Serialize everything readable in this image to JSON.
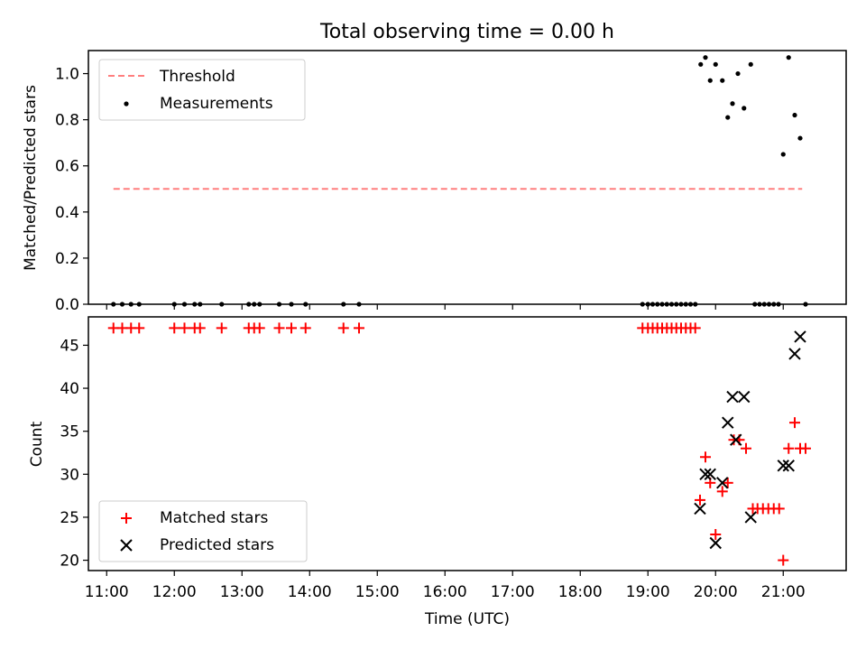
{
  "title": "Total observing time = 0.00 h",
  "chart_data": [
    {
      "type": "scatter",
      "panel": "top",
      "ylabel": "Matched/Predicted stars",
      "ylim": [
        0,
        1.1
      ],
      "yticks": [
        0.0,
        0.2,
        0.4,
        0.6,
        0.8,
        1.0
      ],
      "ytick_labels": [
        "0.0",
        "0.2",
        "0.4",
        "0.6",
        "0.8",
        "1.0"
      ],
      "legend_position": "top-left",
      "threshold": {
        "name": "Threshold",
        "value": 0.5,
        "x_start": 11.1,
        "x_end": 21.28,
        "color": "#ff7f7f",
        "style": "dashed"
      },
      "series": [
        {
          "name": "Measurements",
          "color": "#000000",
          "marker": "dot",
          "points": [
            [
              11.1,
              0.0
            ],
            [
              11.23,
              0.0
            ],
            [
              11.36,
              0.0
            ],
            [
              11.48,
              0.0
            ],
            [
              12.0,
              0.0
            ],
            [
              12.15,
              0.0
            ],
            [
              12.3,
              0.0
            ],
            [
              12.38,
              0.0
            ],
            [
              12.7,
              0.0
            ],
            [
              13.1,
              0.0
            ],
            [
              13.18,
              0.0
            ],
            [
              13.26,
              0.0
            ],
            [
              13.55,
              0.0
            ],
            [
              13.73,
              0.0
            ],
            [
              13.94,
              0.0
            ],
            [
              14.5,
              0.0
            ],
            [
              14.73,
              0.0
            ],
            [
              18.92,
              0.0
            ],
            [
              19.0,
              0.0
            ],
            [
              19.07,
              0.0
            ],
            [
              19.14,
              0.0
            ],
            [
              19.21,
              0.0
            ],
            [
              19.28,
              0.0
            ],
            [
              19.35,
              0.0
            ],
            [
              19.42,
              0.0
            ],
            [
              19.49,
              0.0
            ],
            [
              19.56,
              0.0
            ],
            [
              19.63,
              0.0
            ],
            [
              19.7,
              0.0
            ],
            [
              20.58,
              0.0
            ],
            [
              20.65,
              0.0
            ],
            [
              20.72,
              0.0
            ],
            [
              20.79,
              0.0
            ],
            [
              20.86,
              0.0
            ],
            [
              20.93,
              0.0
            ],
            [
              21.33,
              0.0
            ],
            [
              19.78,
              1.04
            ],
            [
              19.85,
              1.07
            ],
            [
              19.92,
              0.97
            ],
            [
              20.0,
              1.04
            ],
            [
              20.1,
              0.97
            ],
            [
              20.18,
              0.81
            ],
            [
              20.25,
              0.87
            ],
            [
              20.33,
              1.0
            ],
            [
              20.42,
              0.85
            ],
            [
              20.52,
              1.04
            ],
            [
              21.0,
              0.65
            ],
            [
              21.08,
              1.07
            ],
            [
              21.17,
              0.82
            ],
            [
              21.25,
              0.72
            ]
          ]
        }
      ]
    },
    {
      "type": "scatter",
      "panel": "bottom",
      "ylabel": "Count",
      "xlabel": "Time (UTC)",
      "ylim": [
        18.8,
        48.3
      ],
      "yticks": [
        20,
        25,
        30,
        35,
        40,
        45
      ],
      "ytick_labels": [
        "20",
        "25",
        "30",
        "35",
        "40",
        "45"
      ],
      "xlim": [
        10.73,
        21.93
      ],
      "xticks": [
        11,
        12,
        13,
        14,
        15,
        16,
        17,
        18,
        19,
        20,
        21
      ],
      "xtick_labels": [
        "11:00",
        "12:00",
        "13:00",
        "14:00",
        "15:00",
        "16:00",
        "17:00",
        "18:00",
        "19:00",
        "20:00",
        "21:00"
      ],
      "legend_position": "bottom-left",
      "series": [
        {
          "name": "Matched stars",
          "color": "#ff0000",
          "marker": "plus",
          "points": [
            [
              11.1,
              47
            ],
            [
              11.23,
              47
            ],
            [
              11.36,
              47
            ],
            [
              11.48,
              47
            ],
            [
              12.0,
              47
            ],
            [
              12.15,
              47
            ],
            [
              12.3,
              47
            ],
            [
              12.38,
              47
            ],
            [
              12.7,
              47
            ],
            [
              13.1,
              47
            ],
            [
              13.18,
              47
            ],
            [
              13.26,
              47
            ],
            [
              13.55,
              47
            ],
            [
              13.73,
              47
            ],
            [
              13.94,
              47
            ],
            [
              14.5,
              47
            ],
            [
              14.73,
              47
            ],
            [
              18.92,
              47
            ],
            [
              19.0,
              47
            ],
            [
              19.07,
              47
            ],
            [
              19.14,
              47
            ],
            [
              19.21,
              47
            ],
            [
              19.28,
              47
            ],
            [
              19.35,
              47
            ],
            [
              19.42,
              47
            ],
            [
              19.49,
              47
            ],
            [
              19.56,
              47
            ],
            [
              19.63,
              47
            ],
            [
              19.7,
              47
            ],
            [
              19.77,
              27
            ],
            [
              19.85,
              32
            ],
            [
              19.92,
              29
            ],
            [
              20.0,
              23
            ],
            [
              20.1,
              28
            ],
            [
              20.18,
              29
            ],
            [
              20.27,
              34
            ],
            [
              20.35,
              34
            ],
            [
              20.45,
              33
            ],
            [
              20.55,
              26
            ],
            [
              20.62,
              26
            ],
            [
              20.7,
              26
            ],
            [
              20.78,
              26
            ],
            [
              20.86,
              26
            ],
            [
              20.94,
              26
            ],
            [
              21.0,
              20
            ],
            [
              21.08,
              33
            ],
            [
              21.17,
              36
            ],
            [
              21.25,
              33
            ],
            [
              21.33,
              33
            ]
          ]
        },
        {
          "name": "Predicted stars",
          "color": "#000000",
          "marker": "x",
          "points": [
            [
              19.77,
              26
            ],
            [
              19.85,
              30
            ],
            [
              19.92,
              30
            ],
            [
              20.0,
              22
            ],
            [
              20.1,
              29
            ],
            [
              20.18,
              36
            ],
            [
              20.25,
              39
            ],
            [
              20.3,
              34
            ],
            [
              20.42,
              39
            ],
            [
              20.52,
              25
            ],
            [
              21.0,
              31
            ],
            [
              21.08,
              31
            ],
            [
              21.17,
              44
            ],
            [
              21.25,
              46
            ]
          ]
        }
      ]
    }
  ]
}
